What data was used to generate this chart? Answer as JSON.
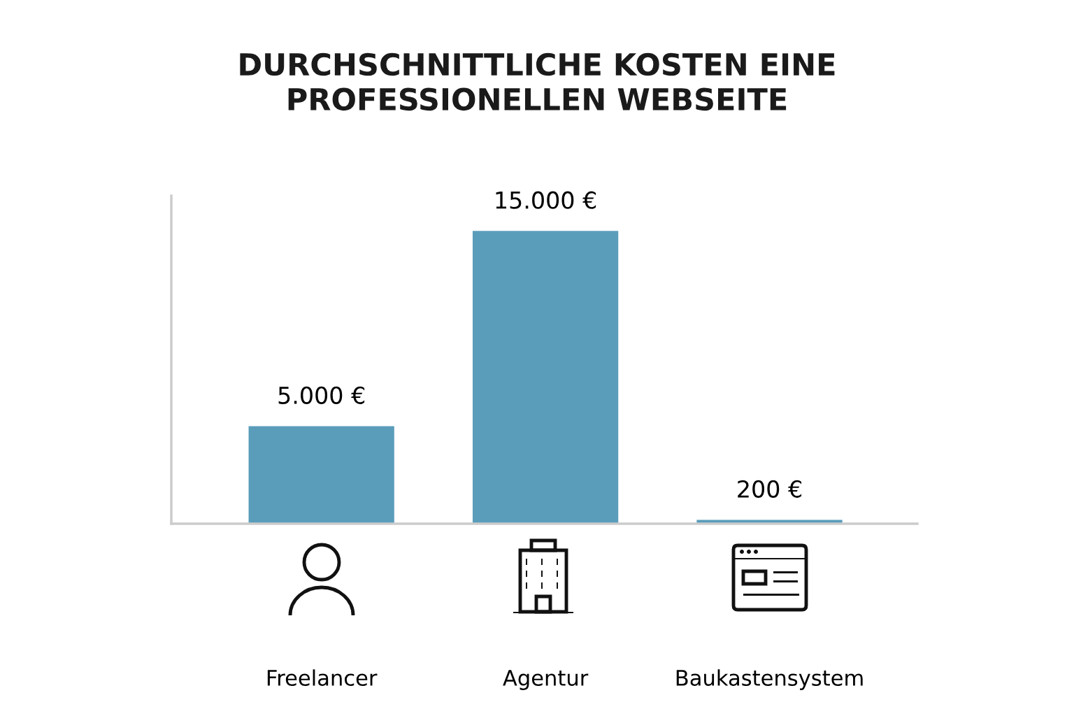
{
  "chart_data": {
    "type": "bar",
    "title": "DURCHSCHNITTLICHE KOSTEN EINE\nPROFESSIONELLEN WEBSEITE",
    "categories": [
      "Freelancer",
      "Agentur",
      "Baukastensystem"
    ],
    "values": [
      5000,
      15000,
      200
    ],
    "value_labels": [
      "5.000 €",
      "15.000 €",
      "200 €"
    ],
    "color": "#5a9dbb",
    "grid": false
  }
}
